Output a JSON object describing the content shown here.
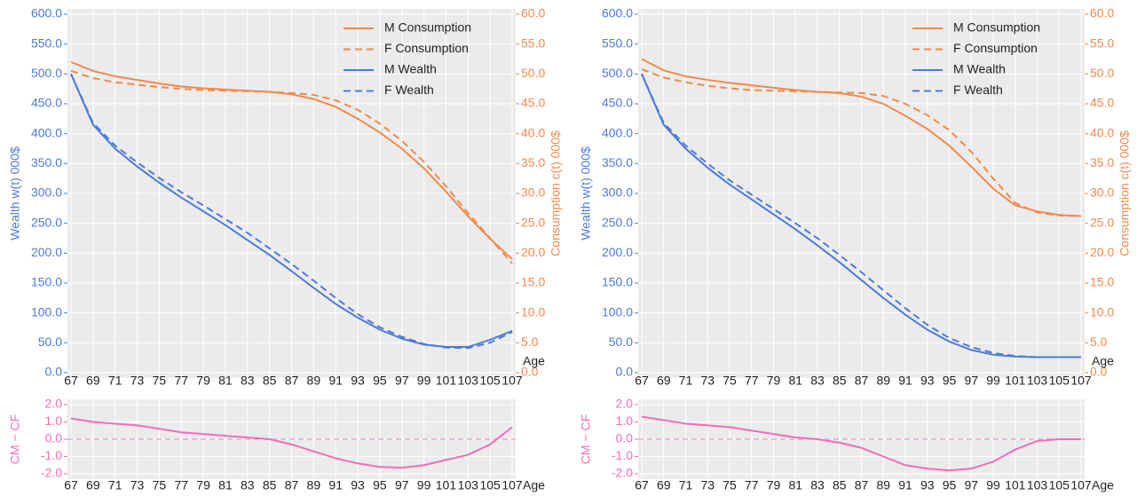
{
  "chart_data": [
    {
      "type": "line",
      "xlabel": "Age",
      "ylabel": "Wealth w(t) 000$",
      "y2label": "Consumption c(t) 000$",
      "x": [
        67,
        69,
        71,
        73,
        75,
        77,
        79,
        81,
        83,
        85,
        87,
        89,
        91,
        93,
        95,
        97,
        99,
        101,
        103,
        105,
        107
      ],
      "xlim": [
        67,
        107
      ],
      "xticks": [
        67,
        69,
        71,
        73,
        75,
        77,
        79,
        81,
        83,
        85,
        87,
        89,
        91,
        93,
        95,
        97,
        99,
        101,
        103,
        105,
        107
      ],
      "ylim": [
        0,
        600
      ],
      "yticks": [
        {
          "value": 0,
          "label": "0.0"
        },
        {
          "value": 50,
          "label": "50.0"
        },
        {
          "value": 100,
          "label": "100.0"
        },
        {
          "value": 150,
          "label": "150.0"
        },
        {
          "value": 200,
          "label": "200.0"
        },
        {
          "value": 250,
          "label": "250.0"
        },
        {
          "value": 300,
          "label": "300.0"
        },
        {
          "value": 350,
          "label": "350.0"
        },
        {
          "value": 400,
          "label": "400.0"
        },
        {
          "value": 450,
          "label": "450.0"
        },
        {
          "value": 500,
          "label": "500.0"
        },
        {
          "value": 550,
          "label": "550.0"
        },
        {
          "value": 600,
          "label": "600.0"
        }
      ],
      "y2lim": [
        0,
        60
      ],
      "y2ticks": [
        {
          "value": 0,
          "label": "0.0"
        },
        {
          "value": 5,
          "label": "5.0"
        },
        {
          "value": 10,
          "label": "10.0"
        },
        {
          "value": 15,
          "label": "15.0"
        },
        {
          "value": 20,
          "label": "20.0"
        },
        {
          "value": 25,
          "label": "25.0"
        },
        {
          "value": 30,
          "label": "30.0"
        },
        {
          "value": 35,
          "label": "35.0"
        },
        {
          "value": 40,
          "label": "40.0"
        },
        {
          "value": 45,
          "label": "45.0"
        },
        {
          "value": 50,
          "label": "50.0"
        },
        {
          "value": 55,
          "label": "55.0"
        },
        {
          "value": 60,
          "label": "60.0"
        }
      ],
      "grid": true,
      "legend": "upper right",
      "series": [
        {
          "name": "M Consumption",
          "color": "#ef8a4c",
          "axis": "y2",
          "dash": false,
          "values": [
            52,
            50.5,
            49.6,
            49,
            48.4,
            47.9,
            47.6,
            47.4,
            47.2,
            47,
            46.6,
            45.8,
            44.5,
            42.5,
            40.2,
            37.5,
            34.2,
            30.3,
            26.2,
            22.4,
            19
          ]
        },
        {
          "name": "F Consumption",
          "color": "#ef8a4c",
          "axis": "y2",
          "dash": true,
          "values": [
            50.5,
            49.3,
            48.6,
            48.2,
            47.8,
            47.5,
            47.3,
            47.2,
            47.1,
            47,
            46.8,
            46.5,
            45.6,
            44,
            41.7,
            38.8,
            35.3,
            31.2,
            26.7,
            22.5,
            18.3
          ]
        },
        {
          "name": "M Wealth",
          "color": "#4e7bd5",
          "axis": "y",
          "dash": false,
          "values": [
            500,
            415,
            375,
            345,
            318,
            293,
            270,
            247,
            222,
            197,
            170,
            142,
            115,
            92,
            72,
            57,
            47,
            43,
            43,
            55,
            70
          ]
        },
        {
          "name": "F Wealth",
          "color": "#4e7bd5",
          "axis": "y",
          "dash": true,
          "values": [
            500,
            418,
            380,
            352,
            326,
            302,
            280,
            257,
            234,
            208,
            182,
            154,
            125,
            98,
            76,
            60,
            48,
            42,
            41,
            50,
            68
          ]
        }
      ]
    },
    {
      "type": "line",
      "xlabel": "Age",
      "ylabel": "CM − CF",
      "x": [
        67,
        69,
        71,
        73,
        75,
        77,
        79,
        81,
        83,
        85,
        87,
        89,
        91,
        93,
        95,
        97,
        99,
        101,
        103,
        105,
        107
      ],
      "xlim": [
        67,
        107
      ],
      "xticks": [
        67,
        69,
        71,
        73,
        75,
        77,
        79,
        81,
        83,
        85,
        87,
        89,
        91,
        93,
        95,
        97,
        99,
        101,
        103,
        105,
        107
      ],
      "ylim": [
        -2,
        2
      ],
      "yticks": [
        {
          "value": -2,
          "label": "-2.0"
        },
        {
          "value": -1,
          "label": "-1.0"
        },
        {
          "value": 0,
          "label": "0.0"
        },
        {
          "value": 1,
          "label": "1.0"
        },
        {
          "value": 2,
          "label": "2.0"
        }
      ],
      "grid": true,
      "hline": 0,
      "series": [
        {
          "color": "#f06db8",
          "axis": "y",
          "dash": false,
          "values": [
            1.2,
            1.0,
            0.9,
            0.8,
            0.6,
            0.4,
            0.3,
            0.2,
            0.1,
            0,
            -0.3,
            -0.7,
            -1.1,
            -1.4,
            -1.6,
            -1.65,
            -1.5,
            -1.2,
            -0.9,
            -0.3,
            0.7
          ]
        }
      ]
    },
    {
      "type": "line",
      "xlabel": "Age",
      "ylabel": "Wealth w(t) 000$",
      "y2label": "Consumption c(t) 000$",
      "x": [
        67,
        69,
        71,
        73,
        75,
        77,
        79,
        81,
        83,
        85,
        87,
        89,
        91,
        93,
        95,
        97,
        99,
        101,
        103,
        105,
        107
      ],
      "xlim": [
        67,
        107
      ],
      "xticks": [
        67,
        69,
        71,
        73,
        75,
        77,
        79,
        81,
        83,
        85,
        87,
        89,
        91,
        93,
        95,
        97,
        99,
        101,
        103,
        105,
        107
      ],
      "ylim": [
        0,
        600
      ],
      "yticks": [
        {
          "value": 0,
          "label": "0.0"
        },
        {
          "value": 50,
          "label": "50.0"
        },
        {
          "value": 100,
          "label": "100.0"
        },
        {
          "value": 150,
          "label": "150.0"
        },
        {
          "value": 200,
          "label": "200.0"
        },
        {
          "value": 250,
          "label": "250.0"
        },
        {
          "value": 300,
          "label": "300.0"
        },
        {
          "value": 350,
          "label": "350.0"
        },
        {
          "value": 400,
          "label": "400.0"
        },
        {
          "value": 450,
          "label": "450.0"
        },
        {
          "value": 500,
          "label": "500.0"
        },
        {
          "value": 550,
          "label": "550.0"
        },
        {
          "value": 600,
          "label": "600.0"
        }
      ],
      "y2lim": [
        0,
        60
      ],
      "y2ticks": [
        {
          "value": 0,
          "label": "0.0"
        },
        {
          "value": 5,
          "label": "5.0"
        },
        {
          "value": 10,
          "label": "10.0"
        },
        {
          "value": 15,
          "label": "15.0"
        },
        {
          "value": 20,
          "label": "20.0"
        },
        {
          "value": 25,
          "label": "25.0"
        },
        {
          "value": 30,
          "label": "30.0"
        },
        {
          "value": 35,
          "label": "35.0"
        },
        {
          "value": 40,
          "label": "40.0"
        },
        {
          "value": 45,
          "label": "45.0"
        },
        {
          "value": 50,
          "label": "50.0"
        },
        {
          "value": 55,
          "label": "55.0"
        },
        {
          "value": 60,
          "label": "60.0"
        }
      ],
      "grid": true,
      "legend": "upper right",
      "series": [
        {
          "name": "M Consumption",
          "color": "#ef8a4c",
          "axis": "y2",
          "dash": false,
          "values": [
            52.5,
            50.6,
            49.6,
            49,
            48.5,
            48.1,
            47.7,
            47.3,
            47,
            46.8,
            46.2,
            45,
            43,
            40.8,
            38,
            34.5,
            30.8,
            28,
            27,
            26.4,
            26.2
          ]
        },
        {
          "name": "F Consumption",
          "color": "#ef8a4c",
          "axis": "y2",
          "dash": true,
          "values": [
            50.8,
            49.4,
            48.6,
            48,
            47.6,
            47.3,
            47.2,
            47.1,
            47,
            46.9,
            46.8,
            46.3,
            45,
            43.1,
            40.6,
            37,
            32.5,
            28.4,
            26.8,
            26.3,
            26.2
          ]
        },
        {
          "name": "M Wealth",
          "color": "#4e7bd5",
          "axis": "y",
          "dash": false,
          "values": [
            500,
            415,
            375,
            343,
            315,
            290,
            265,
            240,
            213,
            185,
            155,
            125,
            97,
            72,
            52,
            38,
            30,
            27,
            26,
            26,
            26
          ]
        },
        {
          "name": "F Wealth",
          "color": "#4e7bd5",
          "axis": "y",
          "dash": true,
          "values": [
            500,
            418,
            380,
            350,
            322,
            298,
            274,
            250,
            225,
            197,
            168,
            138,
            108,
            80,
            58,
            43,
            33,
            28,
            26,
            26,
            26
          ]
        }
      ]
    },
    {
      "type": "line",
      "xlabel": "Age",
      "ylabel": "CM − CF",
      "x": [
        67,
        69,
        71,
        73,
        75,
        77,
        79,
        81,
        83,
        85,
        87,
        89,
        91,
        93,
        95,
        97,
        99,
        101,
        103,
        105,
        107
      ],
      "xlim": [
        67,
        107
      ],
      "xticks": [
        67,
        69,
        71,
        73,
        75,
        77,
        79,
        81,
        83,
        85,
        87,
        89,
        91,
        93,
        95,
        97,
        99,
        101,
        103,
        105,
        107
      ],
      "ylim": [
        -2,
        2
      ],
      "yticks": [
        {
          "value": -2,
          "label": "-2.0"
        },
        {
          "value": -1,
          "label": "-1.0"
        },
        {
          "value": 0,
          "label": "0.0"
        },
        {
          "value": 1,
          "label": "1.0"
        },
        {
          "value": 2,
          "label": "2.0"
        }
      ],
      "grid": true,
      "hline": 0,
      "series": [
        {
          "color": "#f06db8",
          "axis": "y",
          "dash": false,
          "values": [
            1.3,
            1.1,
            0.9,
            0.8,
            0.7,
            0.5,
            0.3,
            0.1,
            0,
            -0.2,
            -0.5,
            -1.0,
            -1.5,
            -1.7,
            -1.8,
            -1.7,
            -1.3,
            -0.6,
            -0.1,
            0,
            0
          ]
        }
      ]
    }
  ]
}
